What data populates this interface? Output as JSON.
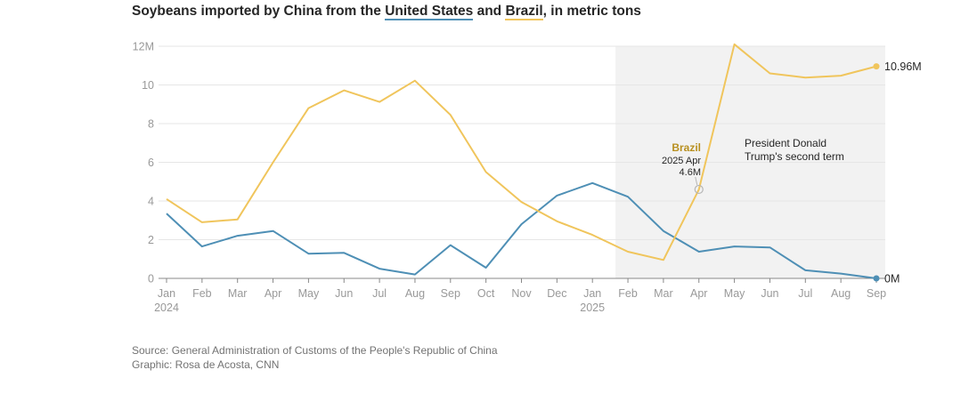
{
  "title": {
    "before": "Soybeans imported by China from the ",
    "us": "United States",
    "middle": " and ",
    "brazil": "Brazil",
    "after": ", in metric tons"
  },
  "colors": {
    "us": "#4e8fb5",
    "brazil": "#f0c55c",
    "shade": "#f2f2f2",
    "grid": "#e6e6e6",
    "axis": "#999999"
  },
  "chart_data": {
    "type": "line",
    "title": "Soybeans imported by China from the United States and Brazil, in metric tons",
    "x": [
      "Jan",
      "Feb",
      "Mar",
      "Apr",
      "May",
      "Jun",
      "Jul",
      "Aug",
      "Sep",
      "Oct",
      "Nov",
      "Dec",
      "Jan",
      "Feb",
      "Mar",
      "Apr",
      "May",
      "Jun",
      "Jul",
      "Aug",
      "Sep"
    ],
    "year_labels": [
      {
        "index": 0,
        "label": "2024"
      },
      {
        "index": 12,
        "label": "2025"
      }
    ],
    "ylim": [
      0,
      12
    ],
    "yticks": [
      0,
      2,
      4,
      6,
      8,
      10,
      12
    ],
    "ytick_labels": [
      "0",
      "2",
      "4",
      "6",
      "8",
      "10",
      "12M"
    ],
    "series": [
      {
        "name": "United States",
        "key": "us",
        "values": [
          3.35,
          1.65,
          2.2,
          2.45,
          1.28,
          1.32,
          0.5,
          0.2,
          1.72,
          0.55,
          2.8,
          4.28,
          4.93,
          4.22,
          2.45,
          1.38,
          1.65,
          1.6,
          0.42,
          0.25,
          0.0
        ],
        "end_label": "0M"
      },
      {
        "name": "Brazil",
        "key": "brazil",
        "values": [
          4.1,
          2.9,
          3.05,
          6.0,
          8.8,
          9.72,
          9.12,
          10.22,
          8.45,
          5.5,
          3.95,
          2.95,
          2.25,
          1.38,
          0.95,
          4.6,
          12.1,
          10.6,
          10.38,
          10.48,
          10.96
        ],
        "end_label": "10.96M"
      }
    ],
    "shaded_region": {
      "from": 12.65,
      "to": 20.25,
      "label_line1": "President Donald",
      "label_line2": "Trump's second term"
    },
    "annotation": {
      "series": "brazil",
      "index": 15,
      "line1": "Brazil",
      "line2": "2025 Apr",
      "line3": "4.6M"
    }
  },
  "source": {
    "line1": "Source: General Administration of Customs of the People's Republic of China",
    "line2": "Graphic: Rosa de Acosta, CNN"
  }
}
